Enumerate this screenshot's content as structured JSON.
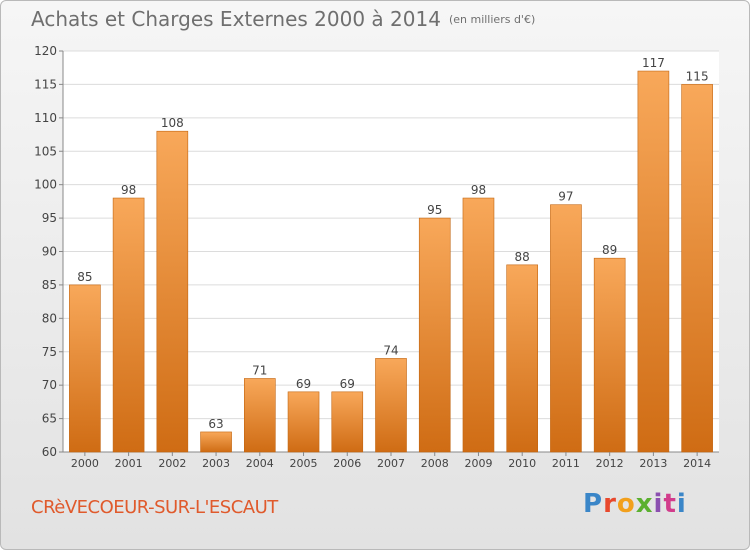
{
  "header": {
    "title": "Achats et Charges Externes 2000 à 2014",
    "unit": "(en milliers d'€)"
  },
  "footer": {
    "commune": "CRèVECOEUR-SUR-L'ESCAUT",
    "logo": "Proxiti",
    "logo_colors": [
      "#3a86c8",
      "#e8482c",
      "#f2a01c",
      "#5bb030",
      "#8b4fb0",
      "#d23c8c",
      "#3a86c8"
    ]
  },
  "colors": {
    "bar_light": "#f8a85a",
    "bar_dark": "#cf6c14",
    "grid": "#dcdcdc",
    "axis_text": "#444444"
  },
  "chart_data": {
    "type": "bar",
    "categories": [
      "2000",
      "2001",
      "2002",
      "2003",
      "2004",
      "2005",
      "2006",
      "2007",
      "2008",
      "2009",
      "2010",
      "2011",
      "2012",
      "2013",
      "2014"
    ],
    "values": [
      85,
      98,
      108,
      63,
      71,
      69,
      69,
      74,
      95,
      98,
      88,
      97,
      89,
      117,
      115
    ],
    "ylim": [
      60,
      120
    ],
    "yticks": [
      60,
      65,
      70,
      75,
      80,
      85,
      90,
      95,
      100,
      105,
      110,
      115,
      120
    ],
    "grid": true,
    "legend": "none"
  }
}
